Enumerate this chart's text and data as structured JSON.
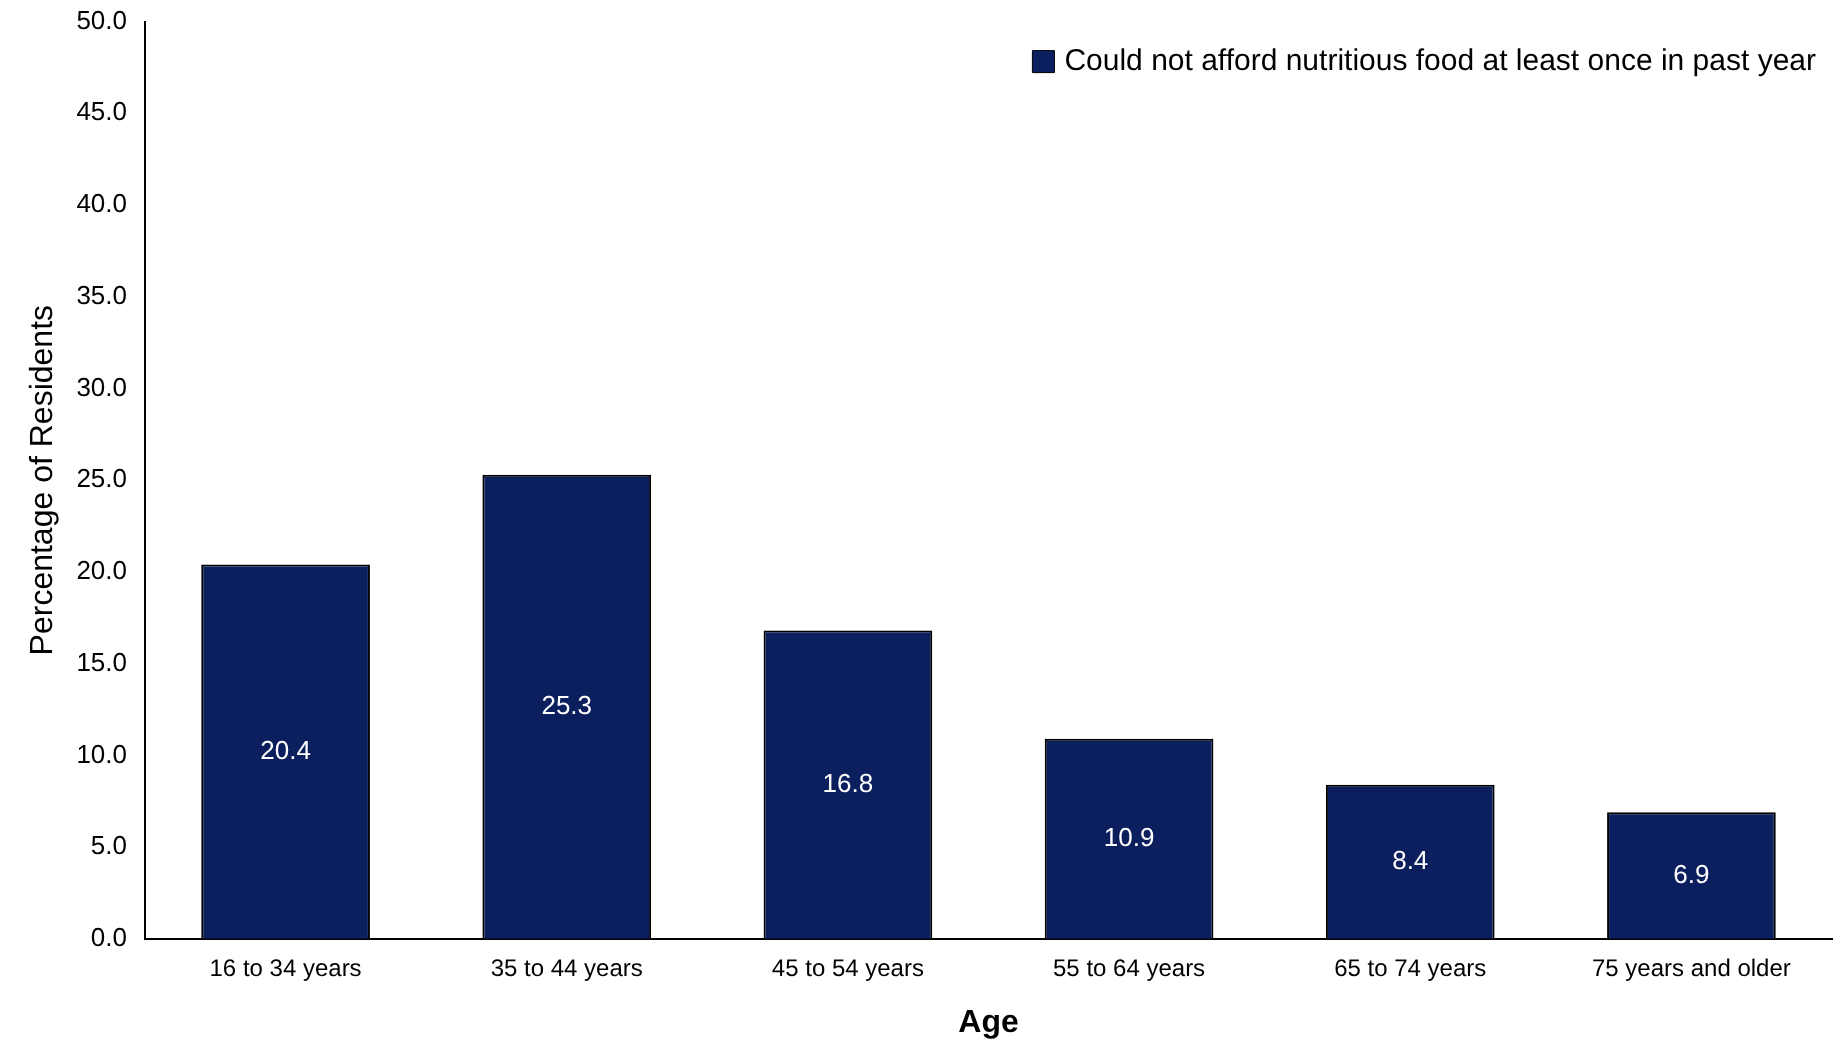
{
  "chart_data": {
    "type": "bar",
    "xlabel": "Age",
    "ylabel": "Percentage of Residents",
    "categories": [
      "16 to 34 years",
      "35 to 44 years",
      "45 to 54 years",
      "55 to 64 years",
      "65 to 74 years",
      "75 years and older"
    ],
    "series": [
      {
        "name": "Could not afford nutritious food at least once in past year",
        "color": "#0b1f5e",
        "values": [
          20.4,
          25.3,
          16.8,
          10.9,
          8.4,
          6.9
        ]
      }
    ],
    "ylim": [
      0,
      50
    ],
    "yticks": [
      {
        "value": 0,
        "label": "0.0"
      },
      {
        "value": 5,
        "label": "5.0"
      },
      {
        "value": 10,
        "label": "10.0"
      },
      {
        "value": 15,
        "label": "15.0"
      },
      {
        "value": 20,
        "label": "20.0"
      },
      {
        "value": 25,
        "label": "25.0"
      },
      {
        "value": 30,
        "label": "30.0"
      },
      {
        "value": 35,
        "label": "35.0"
      },
      {
        "value": 40,
        "label": "40.0"
      },
      {
        "value": 45,
        "label": "45.0"
      },
      {
        "value": 50,
        "label": "50.0"
      }
    ],
    "grid": false,
    "legend": "top right",
    "data_labels": true
  }
}
